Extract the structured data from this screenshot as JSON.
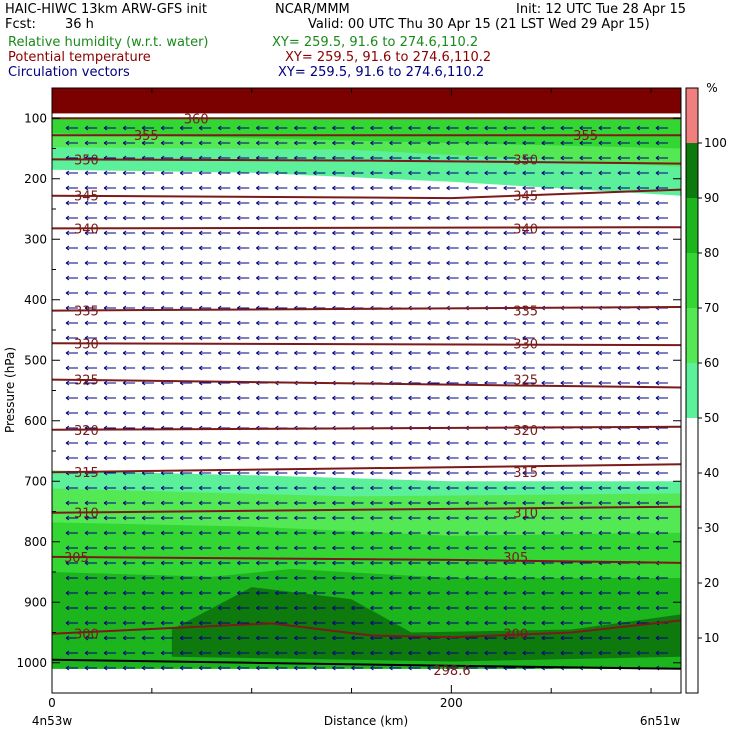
{
  "header": {
    "title": "HAIC-HIWC 13km ARW-GFS init",
    "org": "NCAR/MMM",
    "init": "Init: 12 UTC Tue 28 Apr 15",
    "fcst_label": "Fcst:",
    "fcst_value": "36 h",
    "valid": "Valid: 00 UTC Thu 30 Apr 15 (21 LST Wed 29 Apr 15)",
    "fields": [
      {
        "name": "Relative humidity (w.r.t. water)",
        "xy": "XY= 259.5, 91.6 to 274.6,110.2",
        "color": "#1a8a1a"
      },
      {
        "name": "Potential temperature",
        "xy": "XY= 259.5, 91.6 to 274.6,110.2",
        "color": "#8b0000"
      },
      {
        "name": "Circulation vectors",
        "xy": "XY= 259.5, 91.6 to 274.6,110.2",
        "color": "#000080"
      }
    ]
  },
  "chart_data": {
    "type": "heatmap",
    "title": "Relative humidity (w.r.t. water)",
    "xlabel": "Distance (km)",
    "ylabel": "Pressure (hPa)",
    "x_ticks": [
      0,
      200
    ],
    "x_range": [
      0,
      315
    ],
    "x_end_labels": [
      "4n53w",
      "6n51w"
    ],
    "y_ticks": [
      100,
      200,
      300,
      400,
      500,
      600,
      700,
      800,
      900,
      1000
    ],
    "y_range": [
      1050,
      50
    ],
    "colorbar": {
      "unit": "%",
      "levels": [
        10,
        20,
        30,
        40,
        50,
        60,
        70,
        80,
        90,
        100
      ],
      "bands": [
        {
          "from": 0,
          "to": 50,
          "color": "#ffffff"
        },
        {
          "from": 50,
          "to": 60,
          "color": "#5cf09a"
        },
        {
          "from": 60,
          "to": 70,
          "color": "#55e855"
        },
        {
          "from": 70,
          "to": 80,
          "color": "#33d633"
        },
        {
          "from": 80,
          "to": 90,
          "color": "#1db51d"
        },
        {
          "from": 90,
          "to": 100,
          "color": "#0e7a0e"
        },
        {
          "from": 100,
          "to": 110,
          "color": "#f08080"
        }
      ]
    },
    "rh_regions": [
      {
        "rh": 55,
        "top": [
          [
            0,
            100
          ],
          [
            315,
            100
          ]
        ],
        "bottom": [
          [
            0,
            185
          ],
          [
            100,
            190
          ],
          [
            200,
            205
          ],
          [
            315,
            228
          ]
        ]
      },
      {
        "rh": 65,
        "top": [
          [
            0,
            100
          ],
          [
            315,
            100
          ]
        ],
        "bottom": [
          [
            0,
            148
          ],
          [
            150,
            152
          ],
          [
            315,
            180
          ]
        ]
      },
      {
        "rh": 75,
        "top": [
          [
            0,
            100
          ],
          [
            315,
            100
          ]
        ],
        "bottom": [
          [
            0,
            125
          ],
          [
            315,
            150
          ]
        ]
      },
      {
        "rh": 55,
        "top": [
          [
            0,
            682
          ],
          [
            100,
            690
          ],
          [
            200,
            700
          ],
          [
            315,
            700
          ]
        ],
        "bottom": [
          [
            0,
            1010
          ],
          [
            315,
            1010
          ]
        ]
      },
      {
        "rh": 65,
        "top": [
          [
            0,
            712
          ],
          [
            150,
            725
          ],
          [
            315,
            720
          ]
        ],
        "bottom": [
          [
            0,
            1010
          ],
          [
            315,
            1010
          ]
        ]
      },
      {
        "rh": 75,
        "top": [
          [
            0,
            768
          ],
          [
            100,
            775
          ],
          [
            200,
            790
          ],
          [
            315,
            785
          ]
        ],
        "bottom": [
          [
            0,
            1010
          ],
          [
            315,
            1010
          ]
        ]
      },
      {
        "rh": 85,
        "top": [
          [
            0,
            850
          ],
          [
            80,
            858
          ],
          [
            120,
            845
          ],
          [
            200,
            860
          ],
          [
            315,
            860
          ]
        ],
        "bottom": [
          [
            0,
            1010
          ],
          [
            315,
            1010
          ]
        ]
      },
      {
        "rh": 95,
        "top": [
          [
            60,
            945
          ],
          [
            100,
            875
          ],
          [
            150,
            895
          ],
          [
            180,
            950
          ],
          [
            260,
            945
          ],
          [
            315,
            920
          ]
        ],
        "bottom": [
          [
            315,
            990
          ],
          [
            200,
            998
          ],
          [
            60,
            990
          ]
        ]
      }
    ],
    "stratosphere_band": {
      "from": 50,
      "to": 92,
      "color": "#7b0000"
    },
    "potential_temperature": [
      {
        "level": 360,
        "points": [
          [
            0,
            100
          ],
          [
            315,
            100
          ]
        ],
        "label_x": 65
      },
      {
        "level": 355,
        "points": [
          [
            0,
            128
          ],
          [
            315,
            128
          ]
        ],
        "label_x": 40
      },
      {
        "level": 350,
        "points": [
          [
            0,
            168
          ],
          [
            160,
            170
          ],
          [
            315,
            175
          ]
        ],
        "label_x": 10
      },
      {
        "level": 345,
        "points": [
          [
            0,
            228
          ],
          [
            200,
            232
          ],
          [
            315,
            218
          ]
        ],
        "label_x": 10
      },
      {
        "level": 340,
        "points": [
          [
            0,
            282
          ],
          [
            315,
            280
          ]
        ],
        "label_x": 10
      },
      {
        "level": 335,
        "points": [
          [
            0,
            418
          ],
          [
            315,
            412
          ]
        ],
        "label_x": 10
      },
      {
        "level": 330,
        "points": [
          [
            0,
            472
          ],
          [
            315,
            475
          ]
        ],
        "label_x": 10
      },
      {
        "level": 325,
        "points": [
          [
            0,
            532
          ],
          [
            315,
            545
          ]
        ],
        "label_x": 10
      },
      {
        "level": 320,
        "points": [
          [
            0,
            615
          ],
          [
            315,
            610
          ]
        ],
        "label_x": 10
      },
      {
        "level": 315,
        "points": [
          [
            0,
            685
          ],
          [
            315,
            672
          ]
        ],
        "label_x": 10
      },
      {
        "level": 310,
        "points": [
          [
            0,
            752
          ],
          [
            315,
            742
          ]
        ],
        "label_x": 10
      },
      {
        "level": 305,
        "points": [
          [
            0,
            825
          ],
          [
            200,
            830
          ],
          [
            315,
            835
          ]
        ],
        "label_x": 5
      },
      {
        "level": 300,
        "points": [
          [
            0,
            952
          ],
          [
            110,
            935
          ],
          [
            160,
            955
          ],
          [
            200,
            958
          ],
          [
            260,
            950
          ],
          [
            315,
            930
          ]
        ],
        "label_x": 10
      }
    ],
    "contour_labels": [
      {
        "text": "360",
        "x": 65,
        "p": 100
      },
      {
        "text": "355",
        "x": 40,
        "p": 128
      },
      {
        "text": "355",
        "x": 260,
        "p": 128
      },
      {
        "text": "350",
        "x": 10,
        "p": 168
      },
      {
        "text": "350",
        "x": 230,
        "p": 168
      },
      {
        "text": "345",
        "x": 10,
        "p": 228
      },
      {
        "text": "345",
        "x": 230,
        "p": 228
      },
      {
        "text": "340",
        "x": 10,
        "p": 282
      },
      {
        "text": "340",
        "x": 230,
        "p": 282
      },
      {
        "text": "335",
        "x": 10,
        "p": 418
      },
      {
        "text": "335",
        "x": 230,
        "p": 418
      },
      {
        "text": "330",
        "x": 10,
        "p": 472
      },
      {
        "text": "330",
        "x": 230,
        "p": 472
      },
      {
        "text": "325",
        "x": 10,
        "p": 532
      },
      {
        "text": "325",
        "x": 230,
        "p": 532
      },
      {
        "text": "320",
        "x": 10,
        "p": 615
      },
      {
        "text": "320",
        "x": 230,
        "p": 615
      },
      {
        "text": "315",
        "x": 10,
        "p": 685
      },
      {
        "text": "315",
        "x": 230,
        "p": 685
      },
      {
        "text": "310",
        "x": 10,
        "p": 752
      },
      {
        "text": "310",
        "x": 230,
        "p": 752
      },
      {
        "text": "305",
        "x": 5,
        "p": 825
      },
      {
        "text": "305",
        "x": 225,
        "p": 825
      },
      {
        "text": "300",
        "x": 10,
        "p": 952
      },
      {
        "text": "300",
        "x": 225,
        "p": 952
      },
      {
        "text": "298.6",
        "x": 190,
        "p": 1012
      }
    ],
    "surface_line": [
      [
        0,
        995
      ],
      [
        100,
        1000
      ],
      [
        200,
        1005
      ],
      [
        315,
        1010
      ]
    ],
    "vectors": {
      "columns": 32,
      "rows": 37,
      "color": "#000080",
      "direction": "westward"
    }
  }
}
